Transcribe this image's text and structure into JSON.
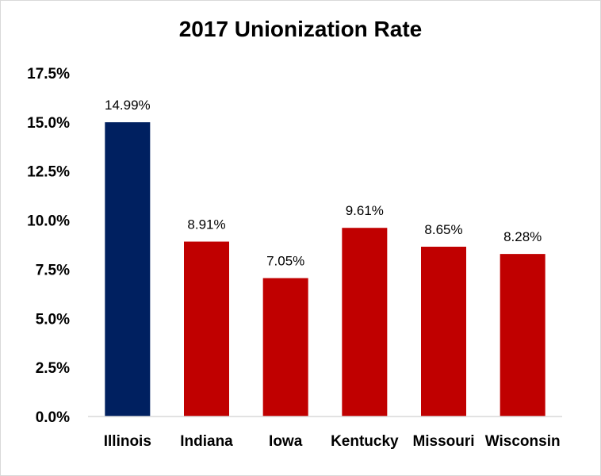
{
  "chart_data": {
    "type": "bar",
    "title": "2017 Unionization Rate",
    "xlabel": "",
    "ylabel": "",
    "categories": [
      "Illinois",
      "Indiana",
      "Iowa",
      "Kentucky",
      "Missouri",
      "Wisconsin"
    ],
    "values": [
      14.99,
      8.91,
      7.05,
      9.61,
      8.65,
      8.28
    ],
    "data_labels": [
      "14.99%",
      "8.91%",
      "7.05%",
      "9.61%",
      "8.65%",
      "8.28%"
    ],
    "bar_colors": [
      "#002060",
      "#c00000",
      "#c00000",
      "#c00000",
      "#c00000",
      "#c00000"
    ],
    "ylim": [
      0,
      17.5
    ],
    "yticks": [
      0,
      2.5,
      5,
      7.5,
      10,
      12.5,
      15,
      17.5
    ],
    "ytick_labels": [
      "0.0%",
      "2.5%",
      "5.0%",
      "7.5%",
      "10.0%",
      "12.5%",
      "15.0%",
      "17.5%"
    ],
    "grid": false,
    "legend": "none"
  }
}
